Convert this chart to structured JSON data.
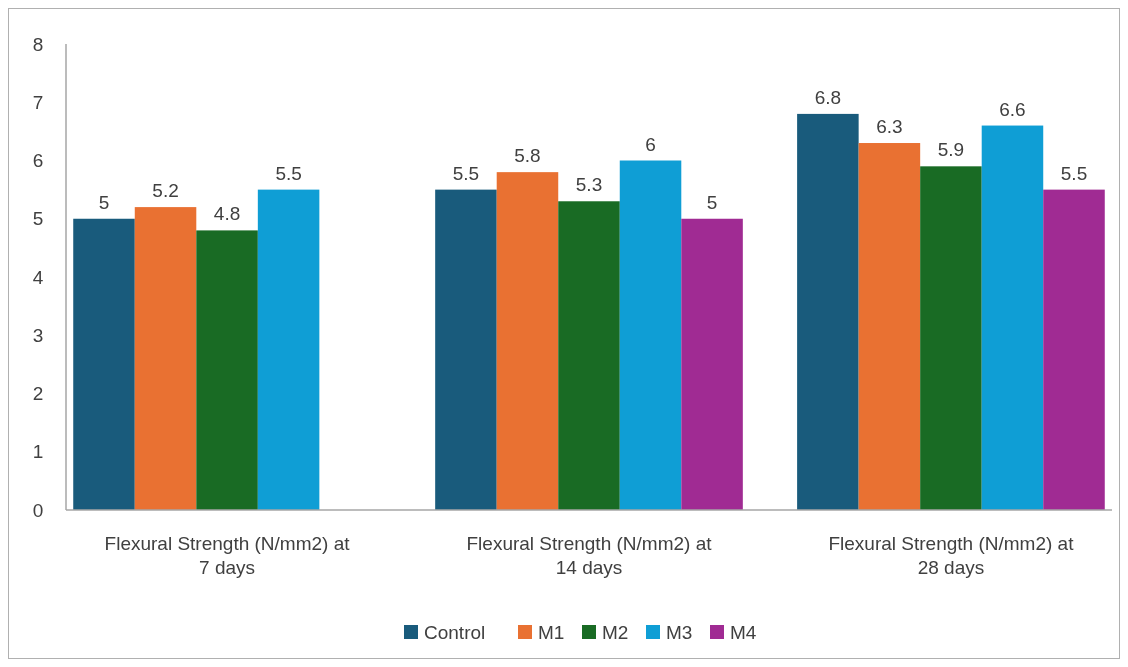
{
  "chart_data": {
    "type": "bar",
    "categories": [
      "Flexural Strength (N/mm2) at 7 days",
      "Flexural Strength (N/mm2) at 14 days",
      "Flexural Strength (N/mm2) at 28 days"
    ],
    "series": [
      {
        "name": "Control",
        "color": "#195b7c",
        "values": [
          5,
          5.5,
          6.8
        ]
      },
      {
        "name": "M1",
        "color": "#e97132",
        "values": [
          5.2,
          5.8,
          6.3
        ]
      },
      {
        "name": "M2",
        "color": "#196b24",
        "values": [
          4.8,
          5.3,
          5.9
        ]
      },
      {
        "name": "M3",
        "color": "#0f9ed5",
        "values": [
          5.5,
          6,
          6.6
        ]
      },
      {
        "name": "M4",
        "color": "#a02b93",
        "values": [
          null,
          5,
          5.5
        ]
      }
    ],
    "ylim": [
      0,
      8
    ],
    "yticks": [
      0,
      1,
      2,
      3,
      4,
      5,
      6,
      7,
      8
    ],
    "grid": false,
    "legend": "bottom",
    "data_labels": true
  }
}
